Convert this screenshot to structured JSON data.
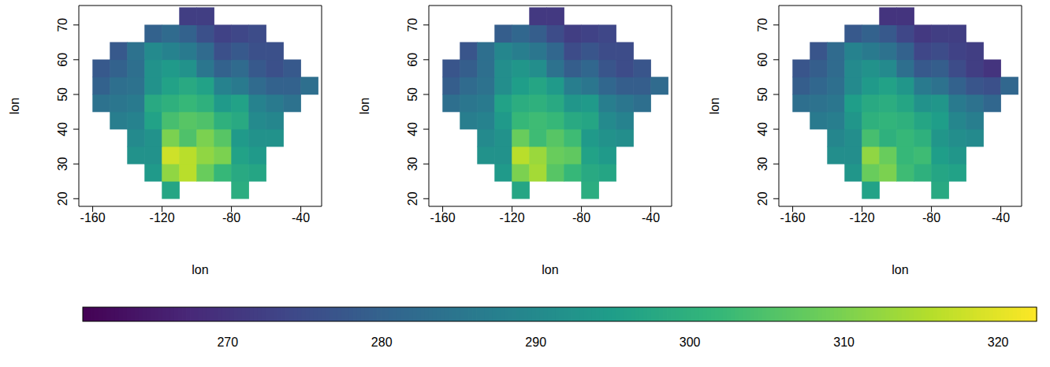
{
  "chart_data": [
    {
      "type": "heatmap",
      "x_label": "lon",
      "y_label": "lon",
      "xlim": [
        -168,
        -28
      ],
      "ylim": [
        17.8,
        75.6
      ],
      "xticks": [
        -160,
        -120,
        -80,
        -40
      ],
      "yticks": [
        20,
        30,
        40,
        50,
        60,
        70
      ],
      "x": [
        -155,
        -145,
        -135,
        -125,
        -115,
        -105,
        -95,
        -85,
        -75,
        -65,
        -55,
        -45,
        -35
      ],
      "y": [
        22.5,
        27.5,
        32.5,
        37.5,
        42.5,
        47.5,
        52.5,
        57.5,
        62.5,
        67.5,
        72.5
      ],
      "z": [
        [
          null,
          null,
          null,
          null,
          297,
          null,
          null,
          null,
          299,
          null,
          null,
          null,
          null
        ],
        [
          null,
          null,
          null,
          294,
          312,
          316,
          308,
          302,
          298,
          297,
          null,
          null,
          null
        ],
        [
          null,
          null,
          292,
          292,
          318,
          316,
          312,
          310,
          296,
          294,
          null,
          null,
          null
        ],
        [
          null,
          null,
          290,
          292,
          310,
          305,
          310,
          306,
          294,
          292,
          292,
          null,
          null
        ],
        [
          null,
          287,
          288,
          296,
          304,
          306,
          305,
          300,
          298,
          290,
          289,
          null,
          null
        ],
        [
          284,
          285,
          286,
          298,
          300,
          302,
          300,
          294,
          296,
          288,
          286,
          284,
          null
        ],
        [
          280,
          283,
          284,
          292,
          296,
          298,
          296,
          288,
          286,
          282,
          280,
          280,
          283
        ],
        [
          278,
          280,
          283,
          292,
          294,
          292,
          285,
          280,
          282,
          278,
          276,
          278,
          null
        ],
        [
          null,
          278,
          284,
          290,
          288,
          286,
          282,
          276,
          278,
          276,
          276,
          null,
          null
        ],
        [
          null,
          null,
          null,
          280,
          282,
          280,
          276,
          273,
          274,
          275,
          null,
          null,
          null
        ],
        [
          null,
          null,
          null,
          null,
          null,
          272,
          272,
          null,
          null,
          null,
          null,
          null,
          null
        ]
      ],
      "colorbar": {
        "range": [
          260.6,
          322.5
        ],
        "ticks": [
          270,
          280,
          290,
          300,
          310,
          320
        ]
      }
    },
    {
      "type": "heatmap",
      "x_label": "lon",
      "y_label": "lon",
      "xlim": [
        -168,
        -28
      ],
      "ylim": [
        17.8,
        75.6
      ],
      "xticks": [
        -160,
        -120,
        -80,
        -40
      ],
      "yticks": [
        20,
        30,
        40,
        50,
        60,
        70
      ],
      "x": [
        -155,
        -145,
        -135,
        -125,
        -115,
        -105,
        -95,
        -85,
        -75,
        -65,
        -55,
        -45,
        -35
      ],
      "y": [
        22.5,
        27.5,
        32.5,
        37.5,
        42.5,
        47.5,
        52.5,
        57.5,
        62.5,
        67.5,
        72.5
      ],
      "z": [
        [
          null,
          null,
          null,
          null,
          297,
          null,
          null,
          null,
          299,
          null,
          null,
          null,
          null
        ],
        [
          null,
          null,
          null,
          294,
          310,
          314,
          306,
          302,
          298,
          297,
          null,
          null,
          null
        ],
        [
          null,
          null,
          292,
          292,
          316,
          313,
          308,
          307,
          296,
          294,
          null,
          null,
          null
        ],
        [
          null,
          null,
          290,
          292,
          308,
          303,
          306,
          303,
          294,
          292,
          291,
          null,
          null
        ],
        [
          null,
          287,
          288,
          294,
          302,
          303,
          302,
          298,
          297,
          290,
          288,
          null,
          null
        ],
        [
          283,
          285,
          286,
          296,
          299,
          300,
          298,
          293,
          294,
          287,
          285,
          283,
          null
        ],
        [
          279,
          282,
          284,
          291,
          295,
          297,
          294,
          287,
          285,
          281,
          279,
          279,
          282
        ],
        [
          277,
          279,
          283,
          291,
          293,
          291,
          284,
          279,
          281,
          277,
          275,
          277,
          null
        ],
        [
          null,
          277,
          283,
          289,
          287,
          285,
          281,
          275,
          277,
          275,
          275,
          null,
          null
        ],
        [
          null,
          null,
          null,
          279,
          281,
          279,
          275,
          272,
          273,
          274,
          null,
          null,
          null
        ],
        [
          null,
          null,
          null,
          null,
          null,
          271,
          271,
          null,
          null,
          null,
          null,
          null,
          null
        ]
      ]
    },
    {
      "type": "heatmap",
      "x_label": "lon",
      "y_label": "lon",
      "xlim": [
        -168,
        -28
      ],
      "ylim": [
        17.8,
        75.6
      ],
      "xticks": [
        -160,
        -120,
        -80,
        -40
      ],
      "yticks": [
        20,
        30,
        40,
        50,
        60,
        70
      ],
      "x": [
        -155,
        -145,
        -135,
        -125,
        -115,
        -105,
        -95,
        -85,
        -75,
        -65,
        -55,
        -45,
        -35
      ],
      "y": [
        22.5,
        27.5,
        32.5,
        37.5,
        42.5,
        47.5,
        52.5,
        57.5,
        62.5,
        67.5,
        72.5
      ],
      "z": [
        [
          null,
          null,
          null,
          null,
          296,
          null,
          null,
          null,
          298,
          null,
          null,
          null,
          null
        ],
        [
          null,
          null,
          null,
          293,
          308,
          310,
          303,
          300,
          297,
          296,
          null,
          null,
          null
        ],
        [
          null,
          null,
          291,
          291,
          312,
          308,
          302,
          303,
          295,
          293,
          null,
          null,
          null
        ],
        [
          null,
          null,
          289,
          291,
          304,
          300,
          302,
          300,
          293,
          291,
          290,
          null,
          null
        ],
        [
          null,
          286,
          287,
          293,
          300,
          301,
          300,
          297,
          295,
          289,
          287,
          null,
          null
        ],
        [
          283,
          284,
          285,
          295,
          298,
          299,
          297,
          292,
          293,
          286,
          284,
          281,
          null
        ],
        [
          279,
          281,
          283,
          290,
          294,
          296,
          293,
          286,
          284,
          280,
          277,
          276,
          281
        ],
        [
          277,
          279,
          282,
          290,
          292,
          290,
          283,
          278,
          279,
          275,
          272,
          270,
          null
        ],
        [
          null,
          277,
          282,
          288,
          286,
          284,
          280,
          274,
          275,
          273,
          272,
          null,
          null
        ],
        [
          null,
          null,
          null,
          278,
          280,
          278,
          274,
          271,
          272,
          272,
          null,
          null,
          null
        ],
        [
          null,
          null,
          null,
          null,
          null,
          270,
          270,
          null,
          null,
          null,
          null,
          null,
          null
        ]
      ]
    }
  ]
}
